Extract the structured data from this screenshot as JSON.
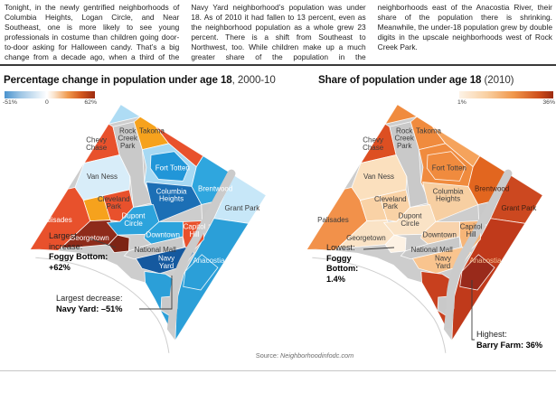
{
  "article": {
    "text": "Tonight, in the newly gentrified neighborhoods of Columbia Heights, Logan Circle, and Near Southeast, one is more likely to see young professionals in costume than children going door-to-door asking for Halloween candy. That’s a big change from a decade ago, when a third of the Navy Yard neighborhood’s population was under 18. As of 2010 it had fallen to 13 percent, even as the neighborhood population as a whole grew 23 percent. There is a shift from Southeast to Northwest, too. While children make up a much greater share of the population in the neighborhoods east of the Anacostia River, their share of the population there is shrinking. Meanwhile, the under-18 population grew by double digits in the upscale neighborhoods west of Rock Creek Park."
  },
  "figure": {
    "source_prefix": "Source: ",
    "source_name": "Neighborhoodinfodc.com",
    "panels": [
      {
        "id": "change",
        "title": "Percentage change in population under age 18",
        "title_note": ", 2000-10",
        "scale": {
          "labels": [
            "-51%",
            "0",
            "62%"
          ],
          "gradient": [
            "#4A93CE 0%",
            "#9FC6E5 18%",
            "#E9F2F9 40%",
            "#FFFFFF 47%",
            "#FBE3CB 55%",
            "#F09A4E 70%",
            "#D2571D 85%",
            "#9C2B10 100%"
          ]
        },
        "annotations": [
          {
            "lead": "Largest increase:",
            "strong": "Foggy Bottom: +62%"
          },
          {
            "lead": "Largest decrease:",
            "strong": "Navy Yard: –51%"
          }
        ]
      },
      {
        "id": "share",
        "title": "Share of population under age 18",
        "title_note": " (2010)",
        "scale": {
          "labels": [
            "1%",
            "36%"
          ],
          "gradient": [
            "#FDF3E7 0%",
            "#F9CFA0 30%",
            "#F0964A 58%",
            "#CE4E1B 85%",
            "#9C2B10 100%"
          ]
        },
        "annotations": [
          {
            "lead": "Lowest:",
            "strong": "Foggy Bottom: 1.4%"
          },
          {
            "lead": "Highest:",
            "strong": "Barry Farm: 36%"
          }
        ]
      }
    ],
    "regions": {
      "tip": {
        "label": "",
        "change": "#AEDCF4",
        "share": "#F08B3E"
      },
      "chevy-chase": {
        "label": "Chevy Chase",
        "change": "#E8512C",
        "share": "#DD4F22",
        "change_text": "#3b3b3b",
        "share_text": "#3d3d3d"
      },
      "rcp": {
        "label": "Rock Creek Park",
        "change": "#C9C9C9",
        "share": "#C9C9C9",
        "change_text": "#3b3b3b",
        "share_text": "#3d3d3d"
      },
      "takoma": {
        "label": "Takoma",
        "change": "#F6A21D",
        "share": "#F08B3E",
        "change_text": "#3b3b3b",
        "share_text": "#3d3d3d"
      },
      "ne-strip": {
        "label": "",
        "change": "#E8512C",
        "share": "#F5A35C"
      },
      "van-ness": {
        "label": "Van Ness",
        "change": "#D8EDF9",
        "share": "#FBE0BE",
        "change_text": "#3b3b3b",
        "share_text": "#3d3d3d"
      },
      "ft-outer": {
        "label": "",
        "change": "#A7D9F3",
        "share": "#F08B3E"
      },
      "ft-core": {
        "label": "Fort Totten",
        "change": "#2196D8",
        "share": "#F08B3E",
        "change_text": "#ffffff",
        "share_text": "#3d3d3d"
      },
      "palisades": {
        "label": "Palisades",
        "change": "#E8512C",
        "share": "#F2914A",
        "change_text": "#ffffff",
        "share_text": "#3d3d3d"
      },
      "clev-west": {
        "label": "",
        "change": "#F6A21D",
        "share": "#F9D2A6"
      },
      "cleveland": {
        "label": "Cleveland Park",
        "change": "#E8512C",
        "share": "#F9D2A6",
        "change_text": "#3b3b3b",
        "share_text": "#3d3d3d"
      },
      "col-heights": {
        "label": "Columbia Heights",
        "change": "#1C6FB5",
        "share": "#F7CFA2",
        "change_text": "#ffffff",
        "share_text": "#3d3d3d"
      },
      "brentwood": {
        "label": "Brentwood",
        "change": "#2FA6DE",
        "share": "#E2661F",
        "change_text": "#ffffff",
        "share_text": "#4a2415"
      },
      "rfk": {
        "label": "",
        "change": "#C9C9C9",
        "share": "#C9C9C9"
      },
      "grant-park": {
        "label": "Grant Park",
        "change": "#C7E7F8",
        "share": "#CC4820",
        "change_text": "#3b3b3b",
        "share_text": "#3d2012"
      },
      "anacostia-east": {
        "label": "Anacostia",
        "change": "#2B9FD8",
        "share": "#C03A1B",
        "change_text": "#E8F4FC",
        "share_text": "#F4C193"
      },
      "barry-farm": {
        "label": "",
        "change": "#2B9FD8",
        "share": "#992A1B"
      },
      "georgetown": {
        "label": "Georgetown",
        "change": "#8E2B1A",
        "share": "#FAE3C6",
        "change_text": "#ffffff",
        "share_text": "#3d3d3d"
      },
      "dupont": {
        "label": "Dupont Circle",
        "change": "#2CA3DC",
        "share": "#FAE3C6",
        "change_text": "#ffffff",
        "share_text": "#3d3d3d"
      },
      "foggy": {
        "label": "",
        "change": "#7D2415",
        "share": "#FDF2E4"
      },
      "downtown": {
        "label": "Downtown",
        "change": "#2CA3DC",
        "share": "#F8D3AC",
        "change_text": "#ffffff",
        "share_text": "#3d3d3d"
      },
      "mall": {
        "label": "National Mall",
        "change": "#C9C9C9",
        "share": "#C9C9C9",
        "change_text": "#3b3b3b",
        "share_text": "#3d3d3d"
      },
      "capitol-hill": {
        "label": "Capitol Hill",
        "change": "#E8512C",
        "share": "#F6B578",
        "change_text": "#ffffff",
        "share_text": "#3d3d3d"
      },
      "navy-yard": {
        "label": "Navy Yard",
        "change": "#15599F",
        "share": "#F9C48E",
        "change_text": "#ffffff",
        "share_text": "#3d3d3d"
      },
      "sw-tail": {
        "label": "",
        "change": "#2B9FD8",
        "share": "#C8401E"
      },
      "bolling": {
        "label": "",
        "change": "#C9C9C9",
        "share": "#C9C9C9"
      }
    }
  },
  "chart_data": [
    {
      "type": "choropleth",
      "title": "Percentage change in population under age 18, 2000-10",
      "unit": "percent",
      "scale_min": -51,
      "scale_mid": 0,
      "scale_max": 62,
      "legend_labels": [
        "-51%",
        "0",
        "62%"
      ],
      "callouts": [
        {
          "label": "Largest increase",
          "area": "Foggy Bottom",
          "value": 62
        },
        {
          "label": "Largest decrease",
          "area": "Navy Yard",
          "value": -51
        }
      ],
      "labeled_areas": [
        "Chevy Chase",
        "Rock Creek Park",
        "Takoma",
        "Van Ness",
        "Fort Totten",
        "Palisades",
        "Cleveland Park",
        "Columbia Heights",
        "Brentwood",
        "Georgetown",
        "Dupont Circle",
        "Downtown",
        "National Mall",
        "Capitol Hill",
        "Navy Yard",
        "Grant Park",
        "Anacostia"
      ]
    },
    {
      "type": "choropleth",
      "title": "Share of population under age 18 (2010)",
      "unit": "percent",
      "scale_min": 1,
      "scale_max": 36,
      "legend_labels": [
        "1%",
        "36%"
      ],
      "callouts": [
        {
          "label": "Lowest",
          "area": "Foggy Bottom",
          "value": 1.4
        },
        {
          "label": "Highest",
          "area": "Barry Farm",
          "value": 36
        }
      ],
      "labeled_areas": [
        "Chevy Chase",
        "Rock Creek Park",
        "Takoma",
        "Van Ness",
        "Fort Totten",
        "Palisades",
        "Cleveland Park",
        "Columbia Heights",
        "Brentwood",
        "Georgetown",
        "Dupont Circle",
        "Downtown",
        "National Mall",
        "Capitol Hill",
        "Navy Yard",
        "Grant Park",
        "Anacostia"
      ]
    }
  ]
}
